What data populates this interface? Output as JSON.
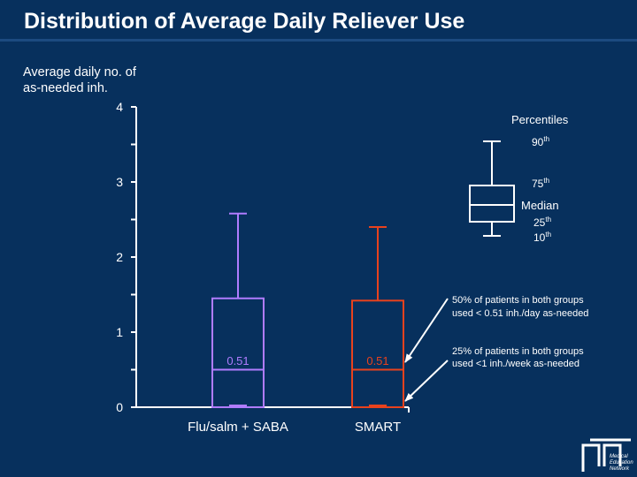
{
  "title": "Distribution of Average Daily Reliever Use",
  "chart_data": {
    "type": "box",
    "ylabel_lines": [
      "Average daily no. of",
      "as-needed inh."
    ],
    "ylim": [
      0,
      4
    ],
    "y_ticks": [
      0,
      1,
      2,
      3,
      4
    ],
    "categories": [
      "Flu/salm + SABA",
      "SMART"
    ],
    "boxes": [
      {
        "name": "Flu/salm + SABA",
        "p10": 0.0,
        "p25": 0.0,
        "median": 0.5,
        "p75": 1.45,
        "p90": 2.58,
        "median_label": "0.51",
        "color": "#b07cff"
      },
      {
        "name": "SMART",
        "p10": 0.0,
        "p25": 0.0,
        "median": 0.5,
        "p75": 1.42,
        "p90": 2.4,
        "median_label": "0.51",
        "color": "#e8421d"
      }
    ],
    "legend": {
      "title": "Percentiles",
      "p90": "90th",
      "p75": "75th",
      "median": "Median",
      "p25": "25th",
      "p10": "10th"
    },
    "annotations": [
      {
        "lines": [
          "50% of patients in both groups",
          "used < 0.51 inh./day as-needed"
        ]
      },
      {
        "lines": [
          "25% of patients in both groups",
          "used <1 inh./week as-needed"
        ]
      }
    ]
  },
  "colors": {
    "background": "#07305d",
    "text": "#ffffff"
  },
  "logo": {
    "line1": "Medical",
    "line2": "Education",
    "line3": "Network"
  }
}
